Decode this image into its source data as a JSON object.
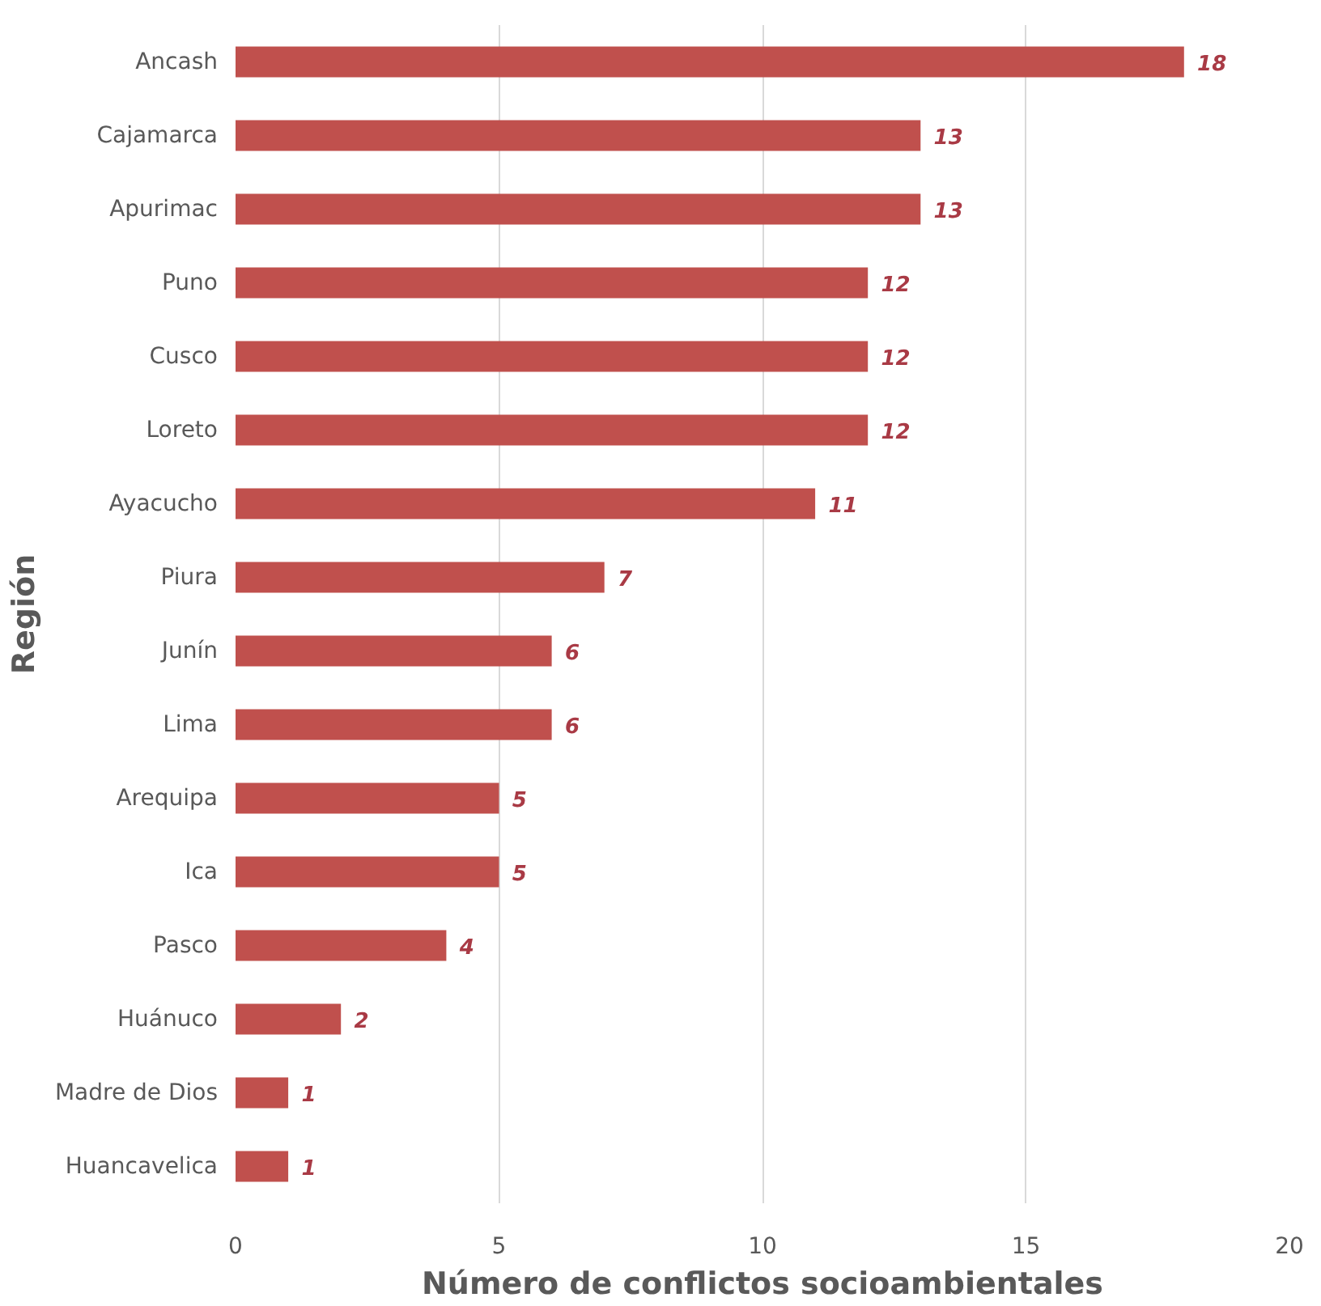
{
  "chart_data": {
    "type": "bar",
    "orientation": "horizontal",
    "xlabel": "Número de conflictos socioambientales",
    "ylabel": "Región",
    "categories": [
      "Ancash",
      "Cajamarca",
      "Apurimac",
      "Puno",
      "Cusco",
      "Loreto",
      "Ayacucho",
      "Piura",
      "Junín",
      "Lima",
      "Arequipa",
      "Ica",
      "Pasco",
      "Huánuco",
      "Madre de Dios",
      "Huancavelica"
    ],
    "values": [
      18,
      13,
      13,
      12,
      12,
      12,
      11,
      7,
      6,
      6,
      5,
      5,
      4,
      2,
      1,
      1
    ],
    "color": "#c0504d",
    "xlim": [
      0,
      20
    ],
    "xticks": [
      0,
      5,
      10,
      15,
      20
    ],
    "grid": "x",
    "data_labels": true
  }
}
